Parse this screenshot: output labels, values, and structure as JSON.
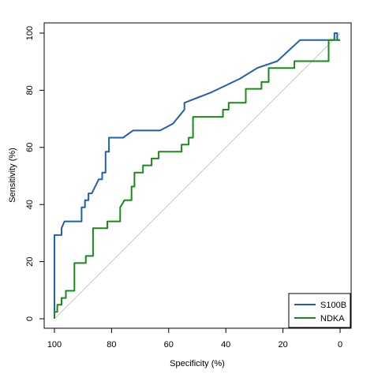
{
  "chart_data": {
    "type": "line",
    "title": "",
    "xlabel": "Specificity (%)",
    "ylabel": "Sensitivity (%)",
    "xlim": [
      100,
      0
    ],
    "ylim": [
      0,
      100
    ],
    "x_reversed": true,
    "xticks": [
      "100",
      "80",
      "60",
      "40",
      "20",
      "0"
    ],
    "yticks": [
      "0",
      "20",
      "40",
      "60",
      "80",
      "100"
    ],
    "grid": false,
    "legend_position": "bottom-right",
    "reference_line": {
      "from": [
        100,
        0
      ],
      "to": [
        0,
        100
      ],
      "color": "#c8c8c8"
    },
    "series": [
      {
        "name": "S100B",
        "color": "#1f5fb4",
        "points": [
          [
            100,
            0
          ],
          [
            100,
            29.3
          ],
          [
            97.5,
            29.3
          ],
          [
            97.5,
            31.7
          ],
          [
            96.5,
            34.1
          ],
          [
            90.5,
            34.1
          ],
          [
            90.5,
            39
          ],
          [
            89.3,
            39
          ],
          [
            89.3,
            41.5
          ],
          [
            88.1,
            41.5
          ],
          [
            88.1,
            43.9
          ],
          [
            86.9,
            43.9
          ],
          [
            84.5,
            48.8
          ],
          [
            83.3,
            48.8
          ],
          [
            83.3,
            51.2
          ],
          [
            82.1,
            51.2
          ],
          [
            82.1,
            58.5
          ],
          [
            80.9,
            58.5
          ],
          [
            80.9,
            63.4
          ],
          [
            76,
            63.4
          ],
          [
            72.5,
            65.9
          ],
          [
            63,
            65.9
          ],
          [
            58.5,
            68.3
          ],
          [
            54.5,
            73.2
          ],
          [
            54.5,
            75.6
          ],
          [
            45,
            79.3
          ],
          [
            35,
            84.1
          ],
          [
            29,
            87.8
          ],
          [
            22,
            90.2
          ],
          [
            14,
            97.6
          ],
          [
            3,
            97.6
          ],
          [
            2,
            97.6
          ],
          [
            2,
            100
          ],
          [
            1,
            100
          ],
          [
            1,
            97.6
          ],
          [
            0,
            97.6
          ]
        ]
      },
      {
        "name": "NDKA",
        "color": "#1a8a1a",
        "points": [
          [
            100,
            0
          ],
          [
            100,
            2.4
          ],
          [
            99,
            2.4
          ],
          [
            99,
            4.9
          ],
          [
            97.5,
            4.9
          ],
          [
            97.5,
            7.3
          ],
          [
            96,
            7.3
          ],
          [
            96,
            9.8
          ],
          [
            93,
            9.8
          ],
          [
            93,
            19.5
          ],
          [
            89,
            19.5
          ],
          [
            89,
            22
          ],
          [
            86.5,
            22
          ],
          [
            86.5,
            31.7
          ],
          [
            81.5,
            31.7
          ],
          [
            81.5,
            34.1
          ],
          [
            77,
            34.1
          ],
          [
            77,
            39
          ],
          [
            75.5,
            41.5
          ],
          [
            73,
            41.5
          ],
          [
            73,
            46.3
          ],
          [
            72,
            46.3
          ],
          [
            72,
            51.2
          ],
          [
            69,
            51.2
          ],
          [
            69,
            53.7
          ],
          [
            66,
            53.7
          ],
          [
            66,
            56.1
          ],
          [
            63.5,
            56.1
          ],
          [
            63.5,
            58.5
          ],
          [
            55.5,
            58.5
          ],
          [
            55.5,
            61
          ],
          [
            53,
            61
          ],
          [
            53,
            63.4
          ],
          [
            51.5,
            63.4
          ],
          [
            51.5,
            70.7
          ],
          [
            41,
            70.7
          ],
          [
            41,
            73.2
          ],
          [
            39,
            73.2
          ],
          [
            39,
            75.6
          ],
          [
            33,
            75.6
          ],
          [
            33,
            80.5
          ],
          [
            27.5,
            80.5
          ],
          [
            27.5,
            82.9
          ],
          [
            25,
            82.9
          ],
          [
            25,
            87.8
          ],
          [
            16,
            87.8
          ],
          [
            16,
            90.2
          ],
          [
            4,
            90.2
          ],
          [
            4,
            97.6
          ],
          [
            0,
            97.6
          ]
        ]
      }
    ]
  }
}
